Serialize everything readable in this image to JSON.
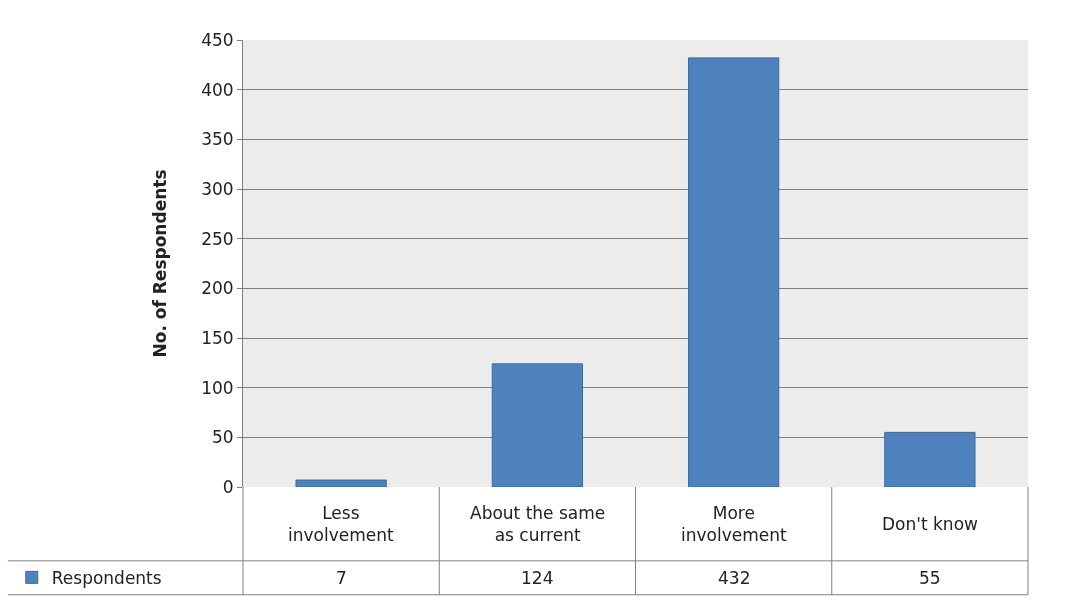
{
  "chart_data": {
    "type": "bar",
    "ylabel": "No. of Respondents",
    "categories": [
      "Less involvement",
      "About the same as current",
      "More involvement",
      "Don't know"
    ],
    "series": [
      {
        "name": "Respondents",
        "color": "#4f81bd",
        "values": [
          7,
          124,
          432,
          55
        ]
      }
    ],
    "ylim": [
      0,
      450
    ],
    "yticks": [
      0,
      50,
      100,
      150,
      200,
      250,
      300,
      350,
      400,
      450
    ],
    "grid": "y",
    "legend": "bottom left",
    "data_labels": true
  }
}
